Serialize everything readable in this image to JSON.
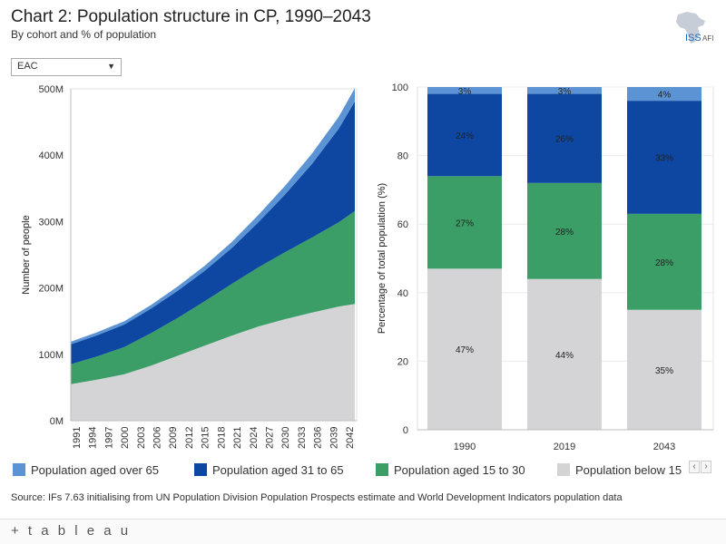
{
  "header": {
    "title": "Chart 2: Population structure in CP, 1990–2043",
    "subtitle": "By cohort and % of population",
    "logo_text": "ISS",
    "logo_suffix": "AFI"
  },
  "filter": {
    "selected": "EAC"
  },
  "legend": {
    "items": [
      {
        "label": "Population aged over 65",
        "color": "#5b93d4"
      },
      {
        "label": "Population aged 31 to 65",
        "color": "#0d47a1"
      },
      {
        "label": "Population aged 15 to 30",
        "color": "#3a9e66"
      },
      {
        "label": "Population below 15",
        "color": "#d4d4d6"
      }
    ]
  },
  "source": "Source: IFs 7.63 initialising from UN Population Division Population Prospects estimate and World Development Indicators population data",
  "footer": {
    "brand": "+ t a b l e a u"
  },
  "chart_data": [
    {
      "type": "area",
      "stacked": true,
      "ylabel": "Number of people",
      "ylim": [
        0,
        500000000
      ],
      "y_ticks": [
        "0M",
        "100M",
        "200M",
        "300M",
        "400M",
        "500M"
      ],
      "x_ticks": [
        "1991",
        "1994",
        "1997",
        "2000",
        "2003",
        "2006",
        "2009",
        "2012",
        "2015",
        "2018",
        "2021",
        "2024",
        "2027",
        "2030",
        "2033",
        "2036",
        "2039",
        "2042"
      ],
      "x": [
        1990,
        1995,
        2000,
        2005,
        2010,
        2015,
        2020,
        2025,
        2030,
        2035,
        2040,
        2043
      ],
      "series": [
        {
          "name": "Population below 15",
          "color": "#d4d4d6",
          "values": [
            55,
            62,
            70,
            83,
            98,
            113,
            128,
            142,
            153,
            163,
            172,
            176
          ]
        },
        {
          "name": "Population aged 15 to 30",
          "color": "#3a9e66",
          "values": [
            30,
            35,
            41,
            49,
            57,
            67,
            78,
            89,
            101,
            113,
            127,
            140
          ]
        },
        {
          "name": "Population aged 31 to 65",
          "color": "#0d47a1",
          "values": [
            30,
            32,
            34,
            37,
            41,
            46,
            54,
            68,
            87,
            111,
            141,
            165
          ]
        },
        {
          "name": "Population aged over 65",
          "color": "#5b93d4",
          "values": [
            4,
            4.5,
            5,
            5.5,
            6.5,
            7.5,
            9,
            11,
            13,
            15.5,
            18,
            20
          ]
        }
      ],
      "units": "millions"
    },
    {
      "type": "bar",
      "stacked": true,
      "ylabel": "Percentage of total population (%)",
      "ylim": [
        0,
        100
      ],
      "y_ticks": [
        "0",
        "20",
        "40",
        "60",
        "80",
        "100"
      ],
      "categories": [
        "1990",
        "2019",
        "2043"
      ],
      "series": [
        {
          "name": "Population below 15",
          "color": "#d4d4d6",
          "values": [
            47,
            44,
            35
          ],
          "labels": [
            "47%",
            "44%",
            "35%"
          ]
        },
        {
          "name": "Population aged 15 to 30",
          "color": "#3a9e66",
          "values": [
            27,
            28,
            28
          ],
          "labels": [
            "27%",
            "28%",
            "28%"
          ]
        },
        {
          "name": "Population aged 31 to 65",
          "color": "#0d47a1",
          "values": [
            24,
            26,
            33
          ],
          "labels": [
            "24%",
            "26%",
            "33%"
          ]
        },
        {
          "name": "Population aged over 65",
          "color": "#5b93d4",
          "values": [
            3,
            3,
            4
          ],
          "labels": [
            "3%",
            "3%",
            "4%"
          ]
        }
      ]
    }
  ]
}
